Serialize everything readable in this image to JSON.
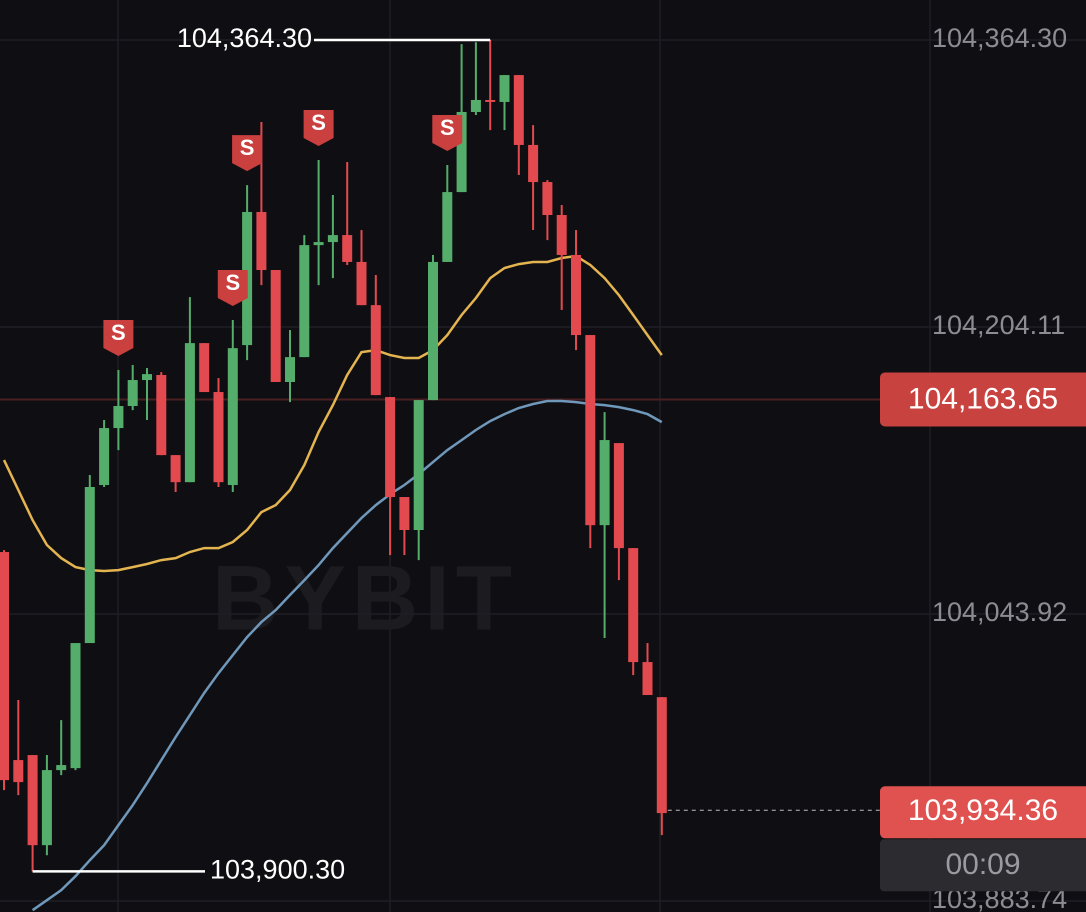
{
  "chart_data": {
    "type": "candlestick",
    "ylim": [
      103877.6,
      104386.6
    ],
    "yticks": [
      {
        "value": 104364.3,
        "label": "104,364.30"
      },
      {
        "value": 104204.11,
        "label": "104,204.11"
      },
      {
        "value": 104043.92,
        "label": "104,043.92"
      },
      {
        "value": 103883.74,
        "label": "103,883.74"
      }
    ],
    "grid": true,
    "up_color": "#55ad6c",
    "down_color": "#e24a4f",
    "candles": {
      "open": [
        104078.5,
        103962.4,
        103965.2,
        103914.9,
        103956.8,
        103957.9,
        104027.7,
        104115.9,
        104147.7,
        104160.0,
        104174.5,
        104177.3,
        104132.6,
        104117.5,
        104195.1,
        104167.8,
        104115.9,
        104194.0,
        104268.3,
        104235.9,
        104173.4,
        104187.3,
        104249.8,
        104251.5,
        104255.4,
        104240.4,
        104216.3,
        104165.0,
        104109.2,
        104090.8,
        104163.3,
        104240.4,
        104279.4,
        104324.1,
        104330.8,
        104329.7,
        104344.7,
        104305.7,
        104285.0,
        104266.6,
        104244.3,
        104199.6,
        104093.5,
        104139.3,
        104080.7,
        104017.1,
        103997.5
      ],
      "high": [
        104079.6,
        103995.9,
        103965.2,
        103965.2,
        103984.7,
        103995.9,
        104121.5,
        104152.2,
        104180.1,
        104182.9,
        104181.2,
        104178.9,
        104132.6,
        104220.8,
        104195.1,
        104175.6,
        104208.0,
        104283.3,
        104318.5,
        104235.9,
        104202.4,
        104255.4,
        104297.3,
        104277.8,
        104296.2,
        104258.2,
        104233.1,
        104165.0,
        104109.2,
        104163.3,
        104244.3,
        104294.5,
        104362.0,
        104363.0,
        104364.3,
        104344.7,
        104344.7,
        104316.8,
        104286.1,
        104272.2,
        104258.2,
        104199.6,
        104156.6,
        104139.3,
        104080.7,
        104027.7,
        103997.5
      ],
      "low": [
        103945.6,
        103942.8,
        103900.3,
        103909.3,
        103954.0,
        103956.8,
        104027.7,
        104114.8,
        104135.4,
        104157.7,
        104152.2,
        104132.6,
        104112.0,
        104117.5,
        104167.8,
        104114.8,
        104112.0,
        104185.6,
        104227.5,
        104173.4,
        104162.2,
        104187.3,
        104227.5,
        104231.4,
        104238.7,
        104216.3,
        104166.1,
        104076.8,
        104076.8,
        104074.0,
        104163.3,
        104240.4,
        104279.4,
        104322.4,
        104314.0,
        104314.0,
        104288.9,
        104258.2,
        104252.6,
        104213.6,
        104191.2,
        104080.7,
        104030.5,
        104062.8,
        104009.8,
        103998.7,
        103920.5
      ],
      "close": [
        103951.2,
        103950.1,
        103914.9,
        103956.8,
        103959.6,
        104027.7,
        104114.8,
        104147.7,
        104160.0,
        104174.5,
        104177.8,
        104132.6,
        104117.5,
        104195.1,
        104167.8,
        104117.5,
        104192.3,
        104268.3,
        104235.9,
        104173.4,
        104187.3,
        104249.8,
        104251.5,
        104255.4,
        104240.4,
        104216.3,
        104166.1,
        104109.2,
        104090.8,
        104163.3,
        104240.4,
        104279.4,
        104324.1,
        104330.8,
        104329.7,
        104344.7,
        104305.7,
        104285.0,
        104266.6,
        104244.3,
        104199.6,
        104093.5,
        104141.0,
        104080.7,
        104017.1,
        103998.7,
        103932.8
      ]
    },
    "series": [
      {
        "color": "#e4b450",
        "values": [
          104129.8,
          104113.1,
          104096.3,
          104082.4,
          104075.1,
          104070.1,
          104068.4,
          104067.9,
          104068.4,
          104070.1,
          104071.8,
          104074.0,
          104075.1,
          104078.5,
          104080.7,
          104080.7,
          104084.1,
          104090.8,
          104100.8,
          104104.7,
          104113.1,
          104127.0,
          104145.5,
          104160.5,
          104177.3,
          104190.1,
          104191.2,
          104188.4,
          104186.8,
          104186.8,
          104191.2,
          104199.6,
          104210.8,
          104220.3,
          104231.4,
          104237.0,
          104239.2,
          104240.4,
          104240.4,
          104242.6,
          104243.7,
          104238.7,
          104231.4,
          104221.9,
          104210.8,
          104199.6,
          104188.4
        ]
      },
      {
        "color": "#6f98bb",
        "values": [
          null,
          null,
          103878.6,
          103884.2,
          103889.8,
          103897.6,
          103906.5,
          103914.9,
          103926.1,
          103937.2,
          103949.5,
          103962.4,
          103975.2,
          103987.5,
          103999.8,
          104010.9,
          104021.0,
          104031.0,
          104039.4,
          104046.1,
          104054.5,
          104062.8,
          104071.2,
          104080.7,
          104089.1,
          104097.5,
          104104.7,
          104110.8,
          104115.9,
          104122.0,
          104128.7,
          104135.4,
          104141.0,
          104146.6,
          104151.6,
          104155.5,
          104158.9,
          104161.1,
          104162.8,
          104162.8,
          104162.2,
          104161.1,
          104160.5,
          104159.4,
          104157.7,
          104155.5,
          104151.0
        ]
      }
    ],
    "high_marker": {
      "value": 104364.3,
      "label": "104,364.30"
    },
    "low_marker": {
      "value": 103900.3,
      "label": "103,900.30"
    },
    "price_line": {
      "value": 104163.65,
      "label": "104,163.65",
      "color": "#c8423f"
    },
    "last_price": {
      "value": 103934.36,
      "label": "103,934.36",
      "color": "#e0524f"
    },
    "countdown": "00:09",
    "signals": {
      "label": "S",
      "indices": [
        8,
        16,
        17,
        22,
        31
      ],
      "color": "#c9403f"
    },
    "watermark": "BYBIT"
  }
}
